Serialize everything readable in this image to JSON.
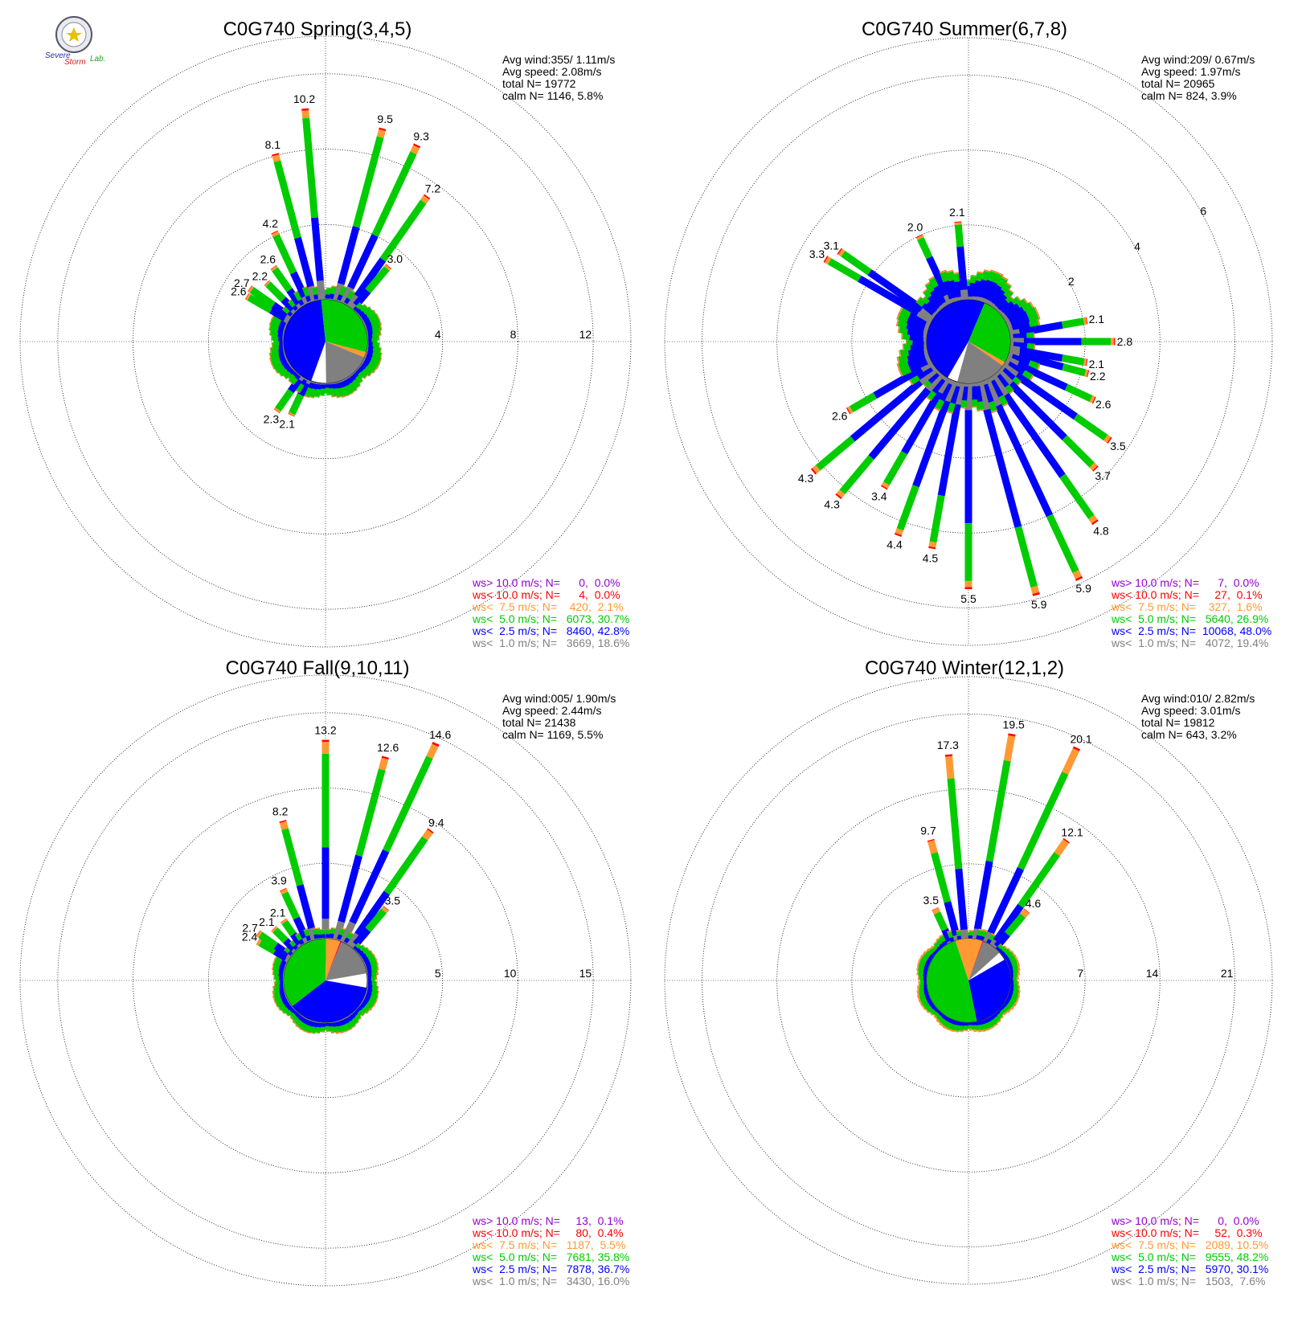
{
  "logo": {
    "text_severe": "Severe",
    "text_storm": "Storm",
    "text_lab": "Lab."
  },
  "colors": {
    "gt10": "#9400d3",
    "lt10": "#ff0000",
    "lt7_5": "#ff9933",
    "lt5": "#00cc00",
    "lt2_5": "#0000ff",
    "lt1": "#808080"
  },
  "chart_data": [
    {
      "type": "polar-bar",
      "title": "C0G740 Spring(3,4,5)",
      "ring_ticks": [
        4,
        8,
        12
      ],
      "rmax": 14,
      "stats": [
        "Avg wind:355/ 1.11m/s",
        "Avg speed: 2.08m/s",
        "total N=      19772",
        "calm N=   1146,   5.8%"
      ],
      "legend": [
        "ws> 10.0 m/s; N=      0,  0.0%",
        "ws< 10.0 m/s; N=      4,  0.0%",
        "ws<  7.5 m/s; N=    420,  2.1%",
        "ws<  5.0 m/s; N=   6073, 30.7%",
        "ws<  2.5 m/s; N=   8460, 42.8%",
        "ws<  1.0 m/s; N=   3669, 18.6%"
      ],
      "pie": [
        18.6,
        42.8,
        30.7,
        2.1,
        0.0,
        0.0
      ],
      "labeled_bars": [
        {
          "dir": 355,
          "total": 10.2,
          "label": "10.2"
        },
        {
          "dir": 15,
          "total": 9.5,
          "label": "9.5"
        },
        {
          "dir": 25,
          "total": 9.3,
          "label": "9.3"
        },
        {
          "dir": 35,
          "total": 7.2,
          "label": "7.2"
        },
        {
          "dir": 40,
          "total": 3.0,
          "label": "3.0"
        },
        {
          "dir": 345,
          "total": 8.1,
          "label": "8.1"
        },
        {
          "dir": 335,
          "total": 4.2,
          "label": "4.2"
        },
        {
          "dir": 325,
          "total": 2.6,
          "label": "2.6"
        },
        {
          "dir": 315,
          "total": 2.2,
          "label": "2.2"
        },
        {
          "dir": 305,
          "total": 2.7,
          "label": "2.7"
        },
        {
          "dir": 300,
          "total": 2.6,
          "label": "2.6"
        },
        {
          "dir": 215,
          "total": 2.3,
          "label": "2.3"
        },
        {
          "dir": 205,
          "total": 2.1,
          "label": "2.1"
        }
      ]
    },
    {
      "type": "polar-bar",
      "title": "C0G740 Summer(6,7,8)",
      "ring_ticks": [
        2,
        4,
        6
      ],
      "rmax": 7,
      "stats": [
        "Avg wind:209/ 0.67m/s",
        "Avg speed: 1.97m/s",
        "total N=      20965",
        "calm N=    824,   3.9%"
      ],
      "legend": [
        "ws> 10.0 m/s; N=      7,  0.0%",
        "ws< 10.0 m/s; N=     27,  0.1%",
        "ws<  7.5 m/s; N=    327,  1.6%",
        "ws<  5.0 m/s; N=   5640, 26.9%",
        "ws<  2.5 m/s; N=  10068, 48.0%",
        "ws<  1.0 m/s; N=   4072, 19.4%"
      ],
      "pie": [
        19.4,
        48.0,
        26.9,
        1.6,
        0.1,
        0.0
      ],
      "labeled_bars": [
        {
          "dir": 355,
          "total": 2.1,
          "label": "2.1"
        },
        {
          "dir": 335,
          "total": 2.0,
          "label": "2.0"
        },
        {
          "dir": 305,
          "total": 3.1,
          "label": "3.1"
        },
        {
          "dir": 300,
          "total": 3.3,
          "label": "3.3"
        },
        {
          "dir": 80,
          "total": 2.1,
          "label": "2.1"
        },
        {
          "dir": 90,
          "total": 2.8,
          "label": "2.8"
        },
        {
          "dir": 100,
          "total": 2.1,
          "label": "2.1"
        },
        {
          "dir": 105,
          "total": 2.2,
          "label": "2.2"
        },
        {
          "dir": 115,
          "total": 2.6,
          "label": "2.6"
        },
        {
          "dir": 125,
          "total": 3.5,
          "label": "3.5"
        },
        {
          "dir": 135,
          "total": 3.7,
          "label": "3.7"
        },
        {
          "dir": 145,
          "total": 4.8,
          "label": "4.8"
        },
        {
          "dir": 155,
          "total": 5.9,
          "label": "5.9"
        },
        {
          "dir": 165,
          "total": 5.9,
          "label": "5.9"
        },
        {
          "dir": 180,
          "total": 5.5,
          "label": "5.5"
        },
        {
          "dir": 190,
          "total": 4.5,
          "label": "4.5"
        },
        {
          "dir": 200,
          "total": 4.4,
          "label": "4.4"
        },
        {
          "dir": 210,
          "total": 3.4,
          "label": "3.4"
        },
        {
          "dir": 220,
          "total": 4.3,
          "label": "4.3"
        },
        {
          "dir": 230,
          "total": 4.3,
          "label": "4.3"
        },
        {
          "dir": 240,
          "total": 2.6,
          "label": "2.6"
        }
      ]
    },
    {
      "type": "polar-bar",
      "title": "C0G740 Fall(9,10,11)",
      "ring_ticks": [
        5,
        10,
        15
      ],
      "rmax": 17.5,
      "stats": [
        "Avg wind:005/ 1.90m/s",
        "Avg speed: 2.44m/s",
        "total N=      21438",
        "calm N=   1169,   5.5%"
      ],
      "legend": [
        "ws> 10.0 m/s; N=     13,  0.1%",
        "ws< 10.0 m/s; N=     80,  0.4%",
        "ws<  7.5 m/s; N=   1187,  5.5%",
        "ws<  5.0 m/s; N=   7681, 35.8%",
        "ws<  2.5 m/s; N=   7878, 36.7%",
        "ws<  1.0 m/s; N=   3430, 16.0%"
      ],
      "pie": [
        16.0,
        36.7,
        35.8,
        5.5,
        0.4,
        0.1
      ],
      "labeled_bars": [
        {
          "dir": 0,
          "total": 13.2,
          "label": "13.2"
        },
        {
          "dir": 15,
          "total": 12.6,
          "label": "12.6"
        },
        {
          "dir": 25,
          "total": 14.6,
          "label": "14.6"
        },
        {
          "dir": 35,
          "total": 9.4,
          "label": "9.4"
        },
        {
          "dir": 40,
          "total": 3.5,
          "label": "3.5"
        },
        {
          "dir": 345,
          "total": 8.2,
          "label": "8.2"
        },
        {
          "dir": 335,
          "total": 3.9,
          "label": "3.9"
        },
        {
          "dir": 325,
          "total": 2.1,
          "label": "2.1"
        },
        {
          "dir": 315,
          "total": 2.1,
          "label": "2.1"
        },
        {
          "dir": 305,
          "total": 2.7,
          "label": "2.7"
        },
        {
          "dir": 300,
          "total": 2.4,
          "label": "2.4"
        }
      ]
    },
    {
      "type": "polar-bar",
      "title": "C0G740 Winter(12,1,2)",
      "ring_ticks": [
        7,
        14,
        21
      ],
      "rmax": 24.5,
      "stats": [
        "Avg wind:010/ 2.82m/s",
        "Avg speed: 3.01m/s",
        "total N=      19812",
        "calm N=    643,   3.2%"
      ],
      "legend": [
        "ws> 10.0 m/s; N=      0,  0.0%",
        "ws< 10.0 m/s; N=     52,  0.3%",
        "ws<  7.5 m/s; N=   2089, 10.5%",
        "ws<  5.0 m/s; N=   9555, 48.2%",
        "ws<  2.5 m/s; N=   5970, 30.1%",
        "ws<  1.0 m/s; N=   1503,  7.6%"
      ],
      "pie": [
        7.6,
        30.1,
        48.2,
        10.5,
        0.3,
        0.0
      ],
      "labeled_bars": [
        {
          "dir": 355,
          "total": 17.3,
          "label": "17.3"
        },
        {
          "dir": 10,
          "total": 19.5,
          "label": "19.5"
        },
        {
          "dir": 25,
          "total": 20.1,
          "label": "20.1"
        },
        {
          "dir": 35,
          "total": 12.1,
          "label": "12.1"
        },
        {
          "dir": 40,
          "total": 4.6,
          "label": "4.6"
        },
        {
          "dir": 345,
          "total": 9.7,
          "label": "9.7"
        },
        {
          "dir": 335,
          "total": 3.5,
          "label": "3.5"
        }
      ]
    }
  ]
}
